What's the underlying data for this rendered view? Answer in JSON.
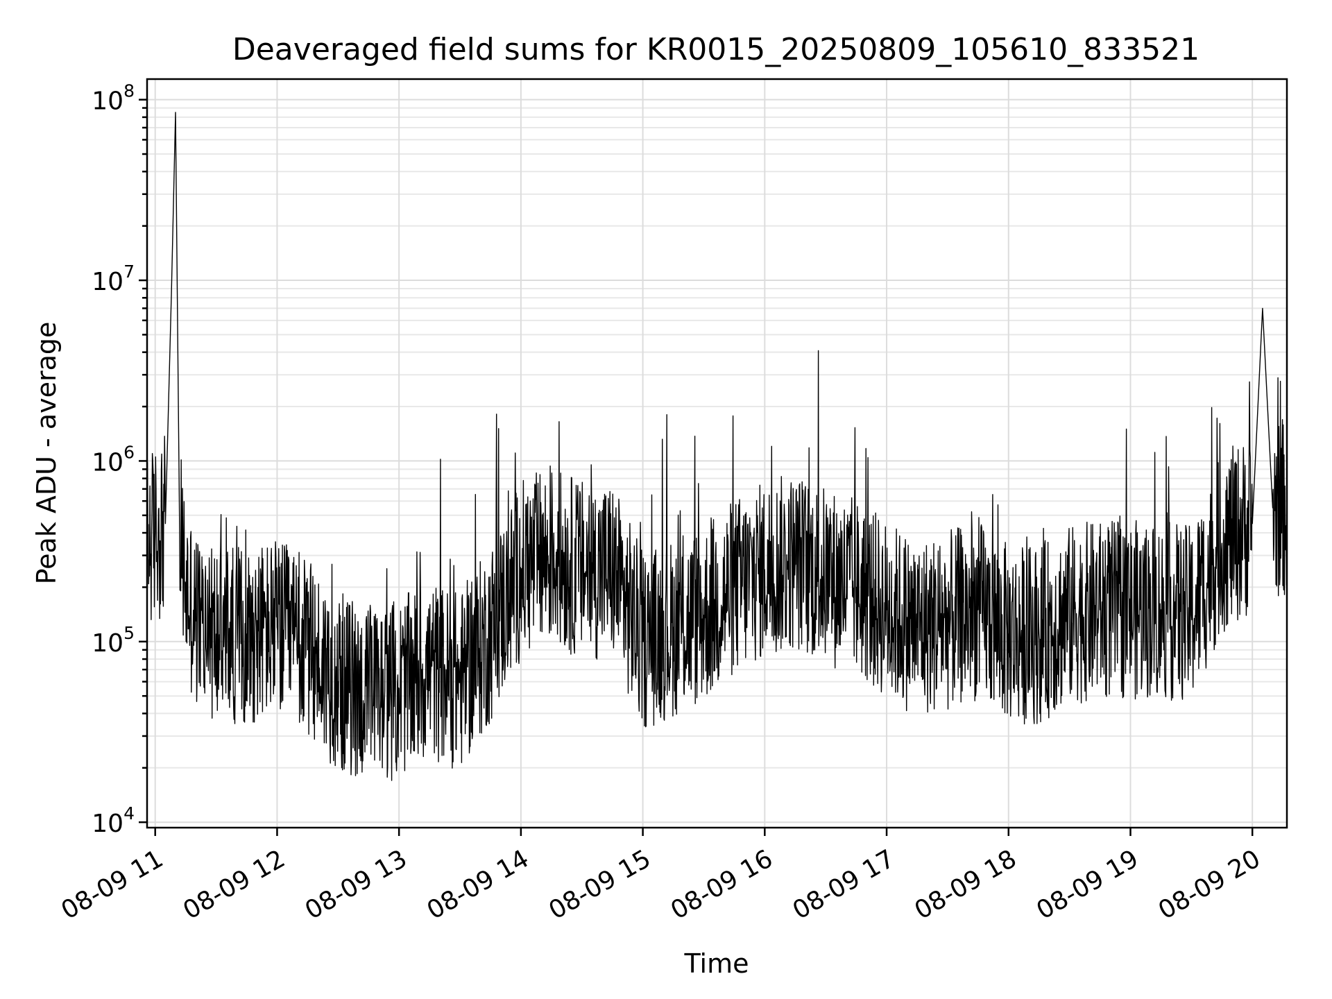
{
  "chart_data": {
    "type": "line",
    "title": "Deaveraged field sums for KR0015_20250809_105610_833521",
    "xlabel": "Time",
    "ylabel": "Peak ADU - average",
    "yscale": "log",
    "ylim": [
      10000,
      130000000
    ],
    "xlim": [
      "2025-08-09 10:56",
      "2025-08-09 20:17"
    ],
    "grid": true,
    "xticks": [
      {
        "value": "2025-08-09 11:00",
        "label": "08-09 11"
      },
      {
        "value": "2025-08-09 12:00",
        "label": "08-09 12"
      },
      {
        "value": "2025-08-09 13:00",
        "label": "08-09 13"
      },
      {
        "value": "2025-08-09 14:00",
        "label": "08-09 14"
      },
      {
        "value": "2025-08-09 15:00",
        "label": "08-09 15"
      },
      {
        "value": "2025-08-09 16:00",
        "label": "08-09 16"
      },
      {
        "value": "2025-08-09 17:00",
        "label": "08-09 17"
      },
      {
        "value": "2025-08-09 18:00",
        "label": "08-09 18"
      },
      {
        "value": "2025-08-09 19:00",
        "label": "08-09 19"
      },
      {
        "value": "2025-08-09 20:00",
        "label": "08-09 20"
      }
    ],
    "yticks": [
      {
        "value": 10000,
        "base": "10",
        "exp": "4"
      },
      {
        "value": 100000,
        "base": "10",
        "exp": "5"
      },
      {
        "value": 1000000,
        "base": "10",
        "exp": "6"
      },
      {
        "value": 10000000,
        "base": "10",
        "exp": "7"
      },
      {
        "value": 100000000,
        "base": "10",
        "exp": "8"
      }
    ],
    "series": [
      {
        "color": "#000000",
        "x": [
          "2025-08-09 10:56",
          "2025-08-09 11:00",
          "2025-08-09 11:05",
          "2025-08-09 11:08",
          "2025-08-09 11:10",
          "2025-08-09 11:12",
          "2025-08-09 11:15",
          "2025-08-09 11:20",
          "2025-08-09 11:30",
          "2025-08-09 11:45",
          "2025-08-09 12:00",
          "2025-08-09 12:15",
          "2025-08-09 12:30",
          "2025-08-09 12:45",
          "2025-08-09 13:00",
          "2025-08-09 13:15",
          "2025-08-09 13:30",
          "2025-08-09 13:45",
          "2025-08-09 14:00",
          "2025-08-09 14:15",
          "2025-08-09 14:30",
          "2025-08-09 14:45",
          "2025-08-09 15:00",
          "2025-08-09 15:15",
          "2025-08-09 15:30",
          "2025-08-09 15:45",
          "2025-08-09 16:00",
          "2025-08-09 16:15",
          "2025-08-09 16:30",
          "2025-08-09 16:45",
          "2025-08-09 17:00",
          "2025-08-09 17:15",
          "2025-08-09 17:30",
          "2025-08-09 17:45",
          "2025-08-09 18:00",
          "2025-08-09 18:15",
          "2025-08-09 18:30",
          "2025-08-09 18:45",
          "2025-08-09 19:00",
          "2025-08-09 19:15",
          "2025-08-09 19:30",
          "2025-08-09 19:45",
          "2025-08-09 20:00",
          "2025-08-09 20:05",
          "2025-08-09 20:10",
          "2025-08-09 20:17"
        ],
        "y": [
          350000,
          400000,
          450000,
          8500000,
          85000000,
          400000,
          200000,
          130000,
          110000,
          110000,
          120000,
          90000,
          60000,
          50000,
          55000,
          70000,
          60000,
          110000,
          250000,
          300000,
          250000,
          250000,
          100000,
          120000,
          140000,
          200000,
          250000,
          280000,
          230000,
          200000,
          150000,
          120000,
          130000,
          150000,
          110000,
          110000,
          140000,
          150000,
          150000,
          150000,
          140000,
          350000,
          450000,
          7000000,
          550000,
          550000
        ]
      }
    ]
  }
}
